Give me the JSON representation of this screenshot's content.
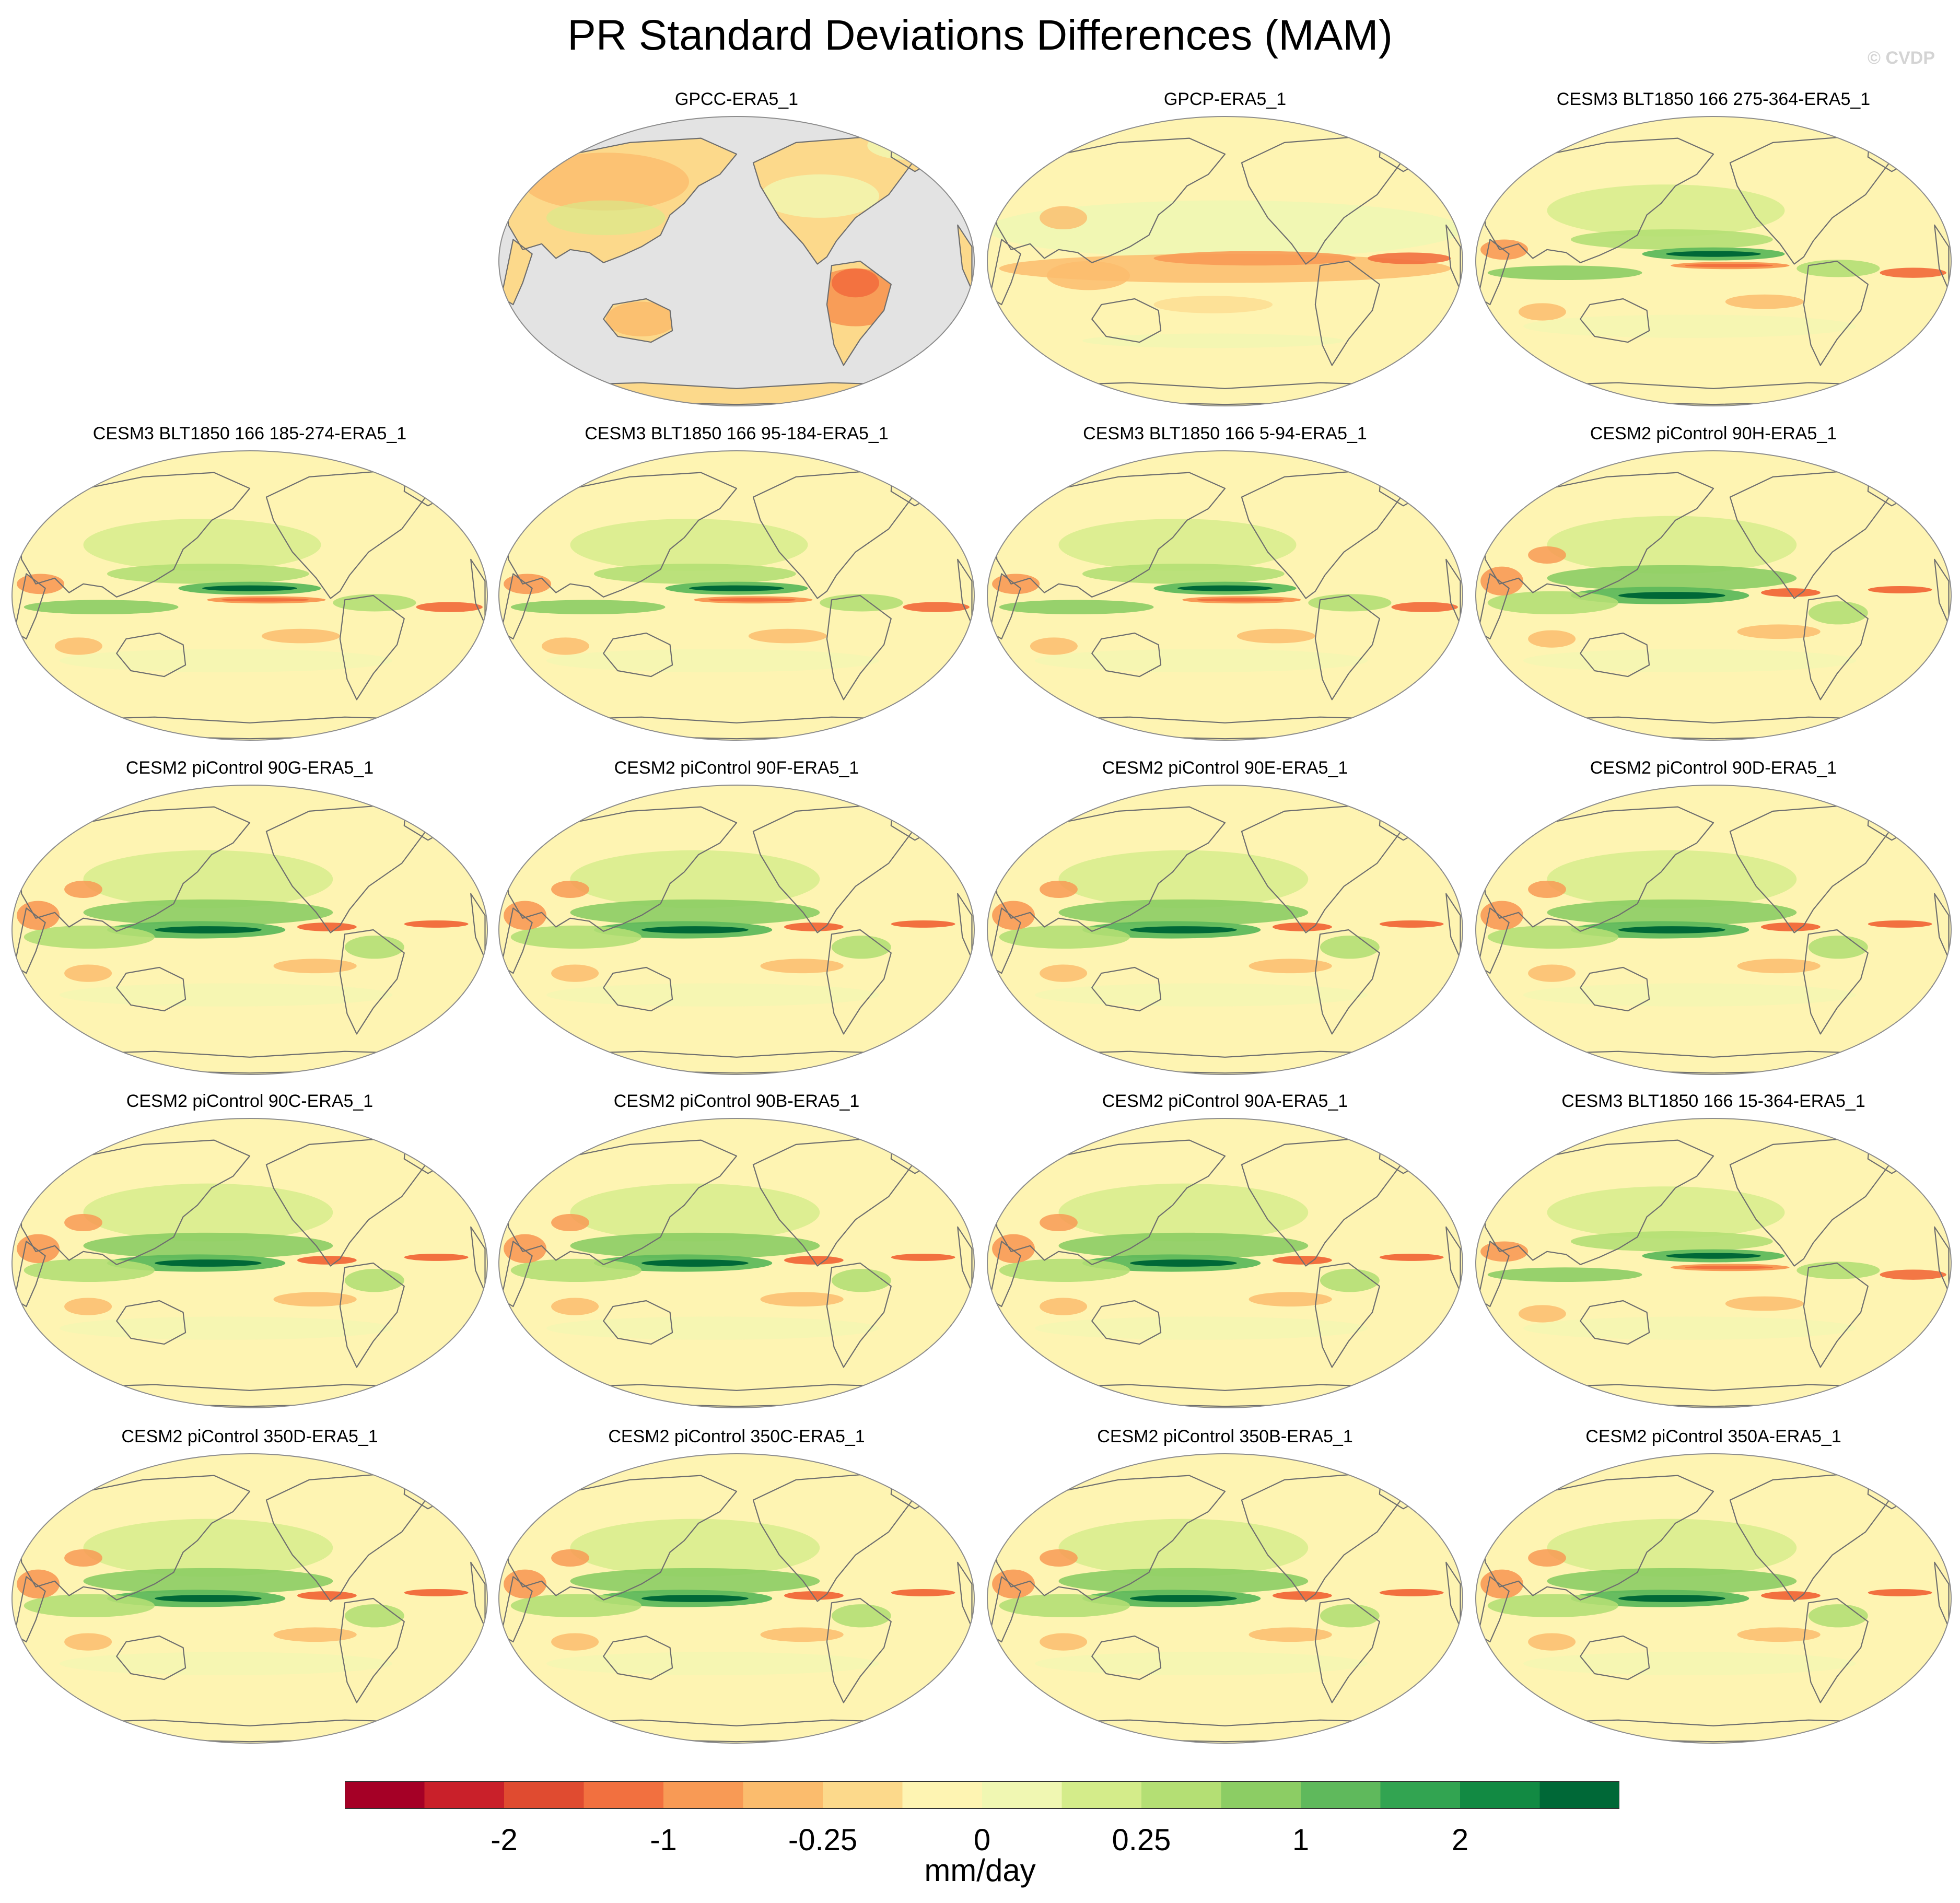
{
  "title": "PR Standard Deviations Differences (MAM)",
  "watermark": "© CVDP",
  "panels": [
    {
      "label": "GPCC-ERA5_1",
      "kind": "gpcc"
    },
    {
      "label": "GPCP-ERA5_1",
      "kind": "gpcp"
    },
    {
      "label": "CESM3 BLT1850 166 275-364-ERA5_1",
      "kind": "cesm3"
    },
    {
      "label": "CESM3 BLT1850 166 185-274-ERA5_1",
      "kind": "cesm3"
    },
    {
      "label": "CESM3 BLT1850 166 95-184-ERA5_1",
      "kind": "cesm3"
    },
    {
      "label": "CESM3 BLT1850 166 5-94-ERA5_1",
      "kind": "cesm3"
    },
    {
      "label": "CESM2 piControl 90H-ERA5_1",
      "kind": "cesm2"
    },
    {
      "label": "CESM2 piControl 90G-ERA5_1",
      "kind": "cesm2"
    },
    {
      "label": "CESM2 piControl 90F-ERA5_1",
      "kind": "cesm2"
    },
    {
      "label": "CESM2 piControl 90E-ERA5_1",
      "kind": "cesm2"
    },
    {
      "label": "CESM2 piControl 90D-ERA5_1",
      "kind": "cesm2"
    },
    {
      "label": "CESM2 piControl 90C-ERA5_1",
      "kind": "cesm2"
    },
    {
      "label": "CESM2 piControl 90B-ERA5_1",
      "kind": "cesm2"
    },
    {
      "label": "CESM2 piControl 90A-ERA5_1",
      "kind": "cesm2"
    },
    {
      "label": "CESM3 BLT1850 166 15-364-ERA5_1",
      "kind": "cesm3"
    },
    {
      "label": "CESM2 piControl 350D-ERA5_1",
      "kind": "cesm2"
    },
    {
      "label": "CESM2 piControl 350C-ERA5_1",
      "kind": "cesm2"
    },
    {
      "label": "CESM2 piControl 350B-ERA5_1",
      "kind": "cesm2"
    },
    {
      "label": "CESM2 piControl 350A-ERA5_1",
      "kind": "cesm2"
    }
  ],
  "colorbar": {
    "colors": [
      "#a50026",
      "#c9202a",
      "#e04b30",
      "#f2703f",
      "#f89a55",
      "#fbbc6d",
      "#fcd98b",
      "#fef4b2",
      "#f0f7b2",
      "#d4ec8a",
      "#b4df74",
      "#8ccd64",
      "#5fb95c",
      "#32a451",
      "#128a43",
      "#006837"
    ],
    "tick_labels": [
      "-2",
      "-1",
      "-0.25",
      "0",
      "0.25",
      "1",
      "2"
    ],
    "unit": "mm/day"
  },
  "map_colors": {
    "missing": "#e3e3e3",
    "coast": "#6e6e6e",
    "border": "#8c8c8c"
  }
}
